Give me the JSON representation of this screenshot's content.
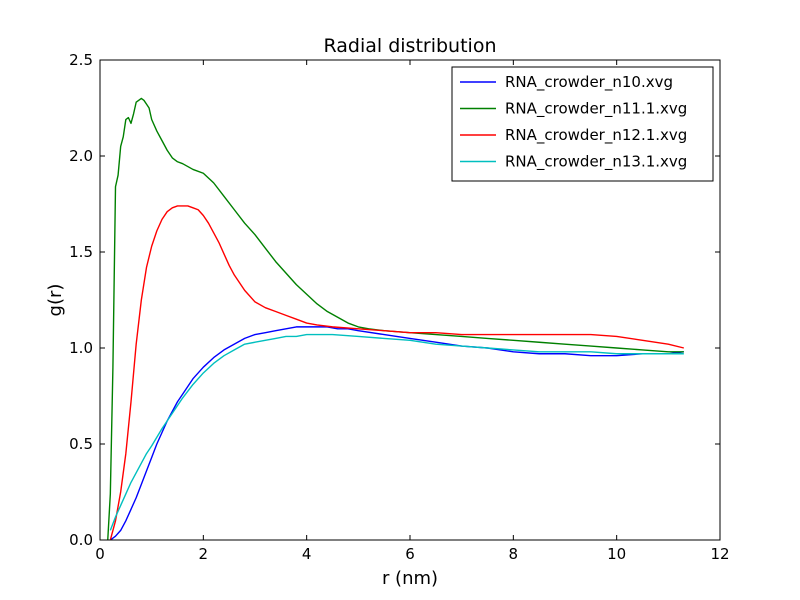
{
  "chart_data": {
    "type": "line",
    "title": "Radial distribution",
    "xlabel": "r (nm)",
    "ylabel": "g(r)",
    "xlim": [
      0,
      12
    ],
    "ylim": [
      0.0,
      2.5
    ],
    "xticks": [
      "0",
      "2",
      "4",
      "6",
      "8",
      "10",
      "12"
    ],
    "yticks": [
      "0.0",
      "0.5",
      "1.0",
      "1.5",
      "2.0",
      "2.5"
    ],
    "grid": false,
    "legend_position": "top-right",
    "series": [
      {
        "name": "RNA_crowder_n10.xvg",
        "color": "#0000ff",
        "x": [
          0.2,
          0.3,
          0.4,
          0.5,
          0.6,
          0.7,
          0.8,
          0.9,
          1.0,
          1.1,
          1.2,
          1.3,
          1.4,
          1.5,
          1.6,
          1.8,
          2.0,
          2.2,
          2.4,
          2.6,
          2.8,
          3.0,
          3.2,
          3.4,
          3.6,
          3.8,
          4.0,
          4.2,
          4.4,
          4.6,
          4.8,
          5.0,
          5.5,
          6.0,
          6.5,
          7.0,
          7.5,
          8.0,
          8.5,
          9.0,
          9.5,
          10.0,
          10.5,
          11.0,
          11.3
        ],
        "y": [
          0.0,
          0.02,
          0.05,
          0.1,
          0.16,
          0.22,
          0.29,
          0.36,
          0.43,
          0.5,
          0.56,
          0.62,
          0.67,
          0.72,
          0.76,
          0.84,
          0.9,
          0.95,
          0.99,
          1.02,
          1.05,
          1.07,
          1.08,
          1.09,
          1.1,
          1.11,
          1.11,
          1.11,
          1.11,
          1.1,
          1.1,
          1.09,
          1.07,
          1.05,
          1.03,
          1.01,
          1.0,
          0.98,
          0.97,
          0.97,
          0.96,
          0.96,
          0.97,
          0.97,
          0.98
        ]
      },
      {
        "name": "RNA_crowder_n11.1.xvg",
        "color": "#008000",
        "x": [
          0.15,
          0.2,
          0.25,
          0.3,
          0.35,
          0.4,
          0.45,
          0.5,
          0.55,
          0.6,
          0.65,
          0.7,
          0.75,
          0.8,
          0.85,
          0.9,
          0.95,
          1.0,
          1.1,
          1.2,
          1.3,
          1.4,
          1.5,
          1.6,
          1.8,
          2.0,
          2.2,
          2.4,
          2.6,
          2.8,
          3.0,
          3.2,
          3.4,
          3.6,
          3.8,
          4.0,
          4.2,
          4.4,
          4.6,
          4.8,
          5.0,
          5.2,
          5.5,
          6.0,
          6.5,
          7.0,
          7.5,
          8.0,
          8.5,
          9.0,
          9.5,
          10.0,
          10.5,
          11.0,
          11.3
        ],
        "y": [
          0.0,
          0.24,
          0.9,
          1.84,
          1.9,
          2.05,
          2.1,
          2.19,
          2.2,
          2.17,
          2.22,
          2.28,
          2.29,
          2.3,
          2.29,
          2.27,
          2.25,
          2.19,
          2.13,
          2.08,
          2.03,
          1.99,
          1.97,
          1.96,
          1.93,
          1.91,
          1.86,
          1.79,
          1.72,
          1.65,
          1.59,
          1.52,
          1.45,
          1.39,
          1.33,
          1.28,
          1.23,
          1.19,
          1.16,
          1.13,
          1.11,
          1.1,
          1.09,
          1.08,
          1.07,
          1.06,
          1.05,
          1.04,
          1.03,
          1.02,
          1.01,
          1.0,
          0.99,
          0.98,
          0.98
        ]
      },
      {
        "name": "RNA_crowder_n12.1.xvg",
        "color": "#ff0000",
        "x": [
          0.2,
          0.3,
          0.4,
          0.5,
          0.6,
          0.7,
          0.8,
          0.9,
          1.0,
          1.1,
          1.2,
          1.3,
          1.4,
          1.5,
          1.6,
          1.7,
          1.8,
          1.9,
          2.0,
          2.1,
          2.2,
          2.3,
          2.4,
          2.5,
          2.6,
          2.8,
          3.0,
          3.2,
          3.4,
          3.6,
          3.8,
          4.0,
          4.2,
          4.5,
          5.0,
          5.5,
          6.0,
          6.5,
          7.0,
          7.5,
          8.0,
          8.5,
          9.0,
          9.5,
          10.0,
          10.5,
          11.0,
          11.3
        ],
        "y": [
          0.0,
          0.1,
          0.25,
          0.45,
          0.72,
          1.02,
          1.25,
          1.42,
          1.53,
          1.61,
          1.67,
          1.71,
          1.73,
          1.74,
          1.74,
          1.74,
          1.73,
          1.72,
          1.69,
          1.65,
          1.6,
          1.55,
          1.49,
          1.43,
          1.38,
          1.3,
          1.24,
          1.21,
          1.19,
          1.17,
          1.15,
          1.13,
          1.12,
          1.11,
          1.1,
          1.09,
          1.08,
          1.08,
          1.07,
          1.07,
          1.07,
          1.07,
          1.07,
          1.07,
          1.06,
          1.04,
          1.02,
          1.0
        ]
      },
      {
        "name": "RNA_crowder_n13.1.xvg",
        "color": "#00bfbf",
        "x": [
          0.2,
          0.3,
          0.4,
          0.5,
          0.6,
          0.7,
          0.8,
          0.9,
          1.0,
          1.2,
          1.4,
          1.6,
          1.8,
          2.0,
          2.2,
          2.4,
          2.6,
          2.8,
          3.0,
          3.2,
          3.4,
          3.6,
          3.8,
          4.0,
          4.2,
          4.5,
          5.0,
          5.5,
          6.0,
          6.5,
          7.0,
          7.5,
          8.0,
          8.5,
          9.0,
          9.5,
          10.0,
          10.5,
          11.0,
          11.3
        ],
        "y": [
          0.05,
          0.12,
          0.18,
          0.24,
          0.3,
          0.35,
          0.4,
          0.45,
          0.49,
          0.58,
          0.66,
          0.74,
          0.81,
          0.87,
          0.92,
          0.96,
          0.99,
          1.02,
          1.03,
          1.04,
          1.05,
          1.06,
          1.06,
          1.07,
          1.07,
          1.07,
          1.06,
          1.05,
          1.04,
          1.02,
          1.01,
          1.0,
          0.99,
          0.98,
          0.98,
          0.98,
          0.97,
          0.97,
          0.97,
          0.97
        ]
      }
    ]
  }
}
